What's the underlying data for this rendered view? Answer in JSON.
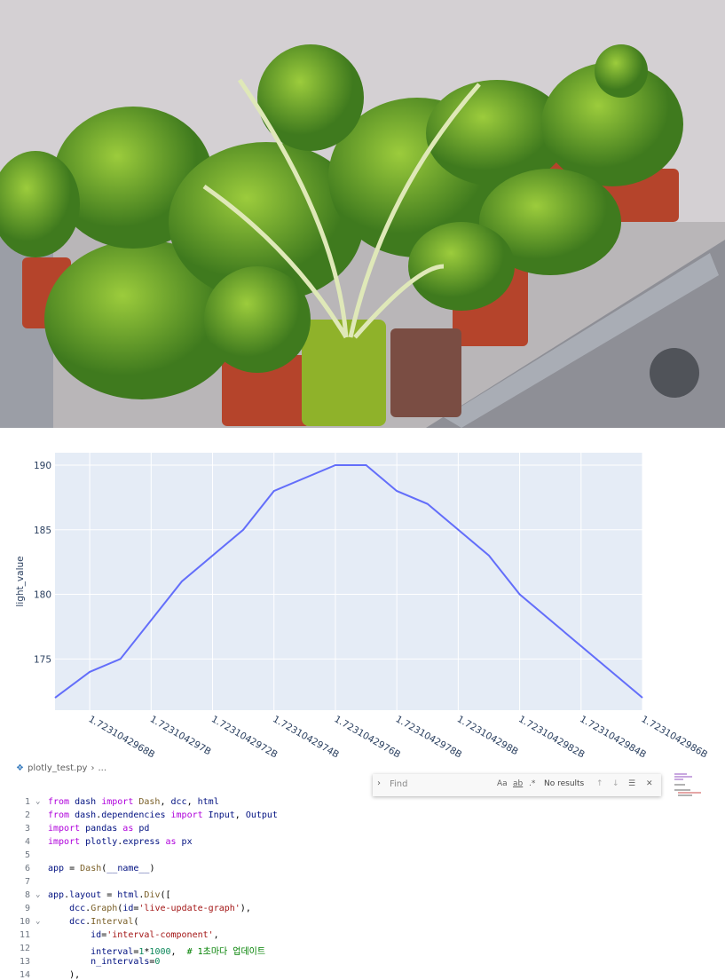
{
  "chart_data": {
    "type": "line",
    "y_label": "light_value",
    "x": [
      1723104296.687,
      1723104296.8,
      1723104296.9,
      1723104297.1,
      1723104297.3,
      1723104297.4,
      1723104297.6,
      1723104297.7,
      1723104297.8,
      1723104297.9,
      1723104298.1,
      1723104298.2,
      1723104298.6
    ],
    "series": [
      {
        "name": "light_value",
        "color": "#636efa",
        "values": [
          172,
          174,
          175,
          181,
          185,
          188,
          190,
          190,
          188,
          187,
          183,
          180,
          172
        ]
      }
    ],
    "xlim": [
      1723104296.687,
      1723104298.6
    ],
    "xticks": [
      {
        "value": 1723104296.8,
        "label": "1.7231042968B"
      },
      {
        "value": 1723104297.0,
        "label": "1.723104297B"
      },
      {
        "value": 1723104297.2,
        "label": "1.7231042972B"
      },
      {
        "value": 1723104297.4,
        "label": "1.7231042974B"
      },
      {
        "value": 1723104297.6,
        "label": "1.7231042976B"
      },
      {
        "value": 1723104297.8,
        "label": "1.7231042978B"
      },
      {
        "value": 1723104298.0,
        "label": "1.723104298B"
      },
      {
        "value": 1723104298.2,
        "label": "1.7231042982B"
      },
      {
        "value": 1723104298.4,
        "label": "1.7231042984B"
      },
      {
        "value": 1723104298.6,
        "label": "1.7231042986B"
      }
    ],
    "ylim": [
      171.04,
      190.96
    ],
    "yticks": [
      175,
      180,
      185,
      190
    ],
    "grid": true,
    "background": "#e5ecf6"
  },
  "editor": {
    "breadcrumb": [
      "plotly_test.py",
      "..."
    ],
    "find": {
      "placeholder": "Find",
      "options": [
        "Aa",
        "ab",
        ".*"
      ],
      "status": "No results"
    },
    "lines": [
      {
        "number": "1",
        "code": "from dash import Dash, dcc, html"
      },
      {
        "number": "2",
        "code": "from dash.dependencies import Input, Output"
      },
      {
        "number": "3",
        "code": "import pandas as pd"
      },
      {
        "number": "4",
        "code": "import plotly.express as px"
      },
      {
        "number": "5",
        "code": ""
      },
      {
        "number": "6",
        "code": "app = Dash(__name__)"
      },
      {
        "number": "7",
        "code": ""
      },
      {
        "number": "8",
        "code": "app.layout = html.Div(["
      },
      {
        "number": "9",
        "code": "    dcc.Graph(id='live-update-graph'),"
      },
      {
        "number": "10",
        "code": "    dcc.Interval("
      },
      {
        "number": "11",
        "code": "        id='interval-component',"
      },
      {
        "number": "12",
        "code": "        interval=1*1000,  # 1초마다 업데이트"
      },
      {
        "number": "13",
        "code": "        n_intervals=0"
      },
      {
        "number": "14",
        "code": "    ),"
      }
    ]
  }
}
